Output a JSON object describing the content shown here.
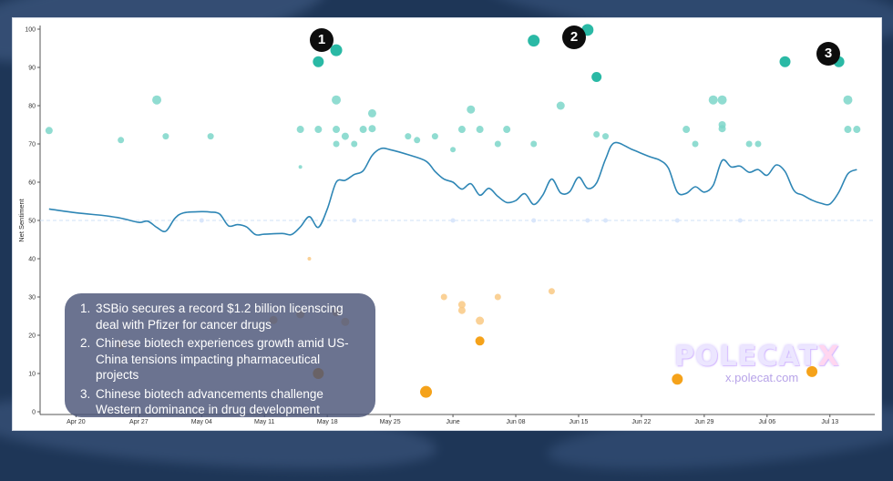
{
  "chart_data": {
    "type": "scatter",
    "ylabel": "Net Sentiment",
    "xlabel": "",
    "ylim": [
      0,
      100
    ],
    "yticks": [
      0,
      10,
      20,
      30,
      40,
      50,
      60,
      70,
      80,
      90,
      100
    ],
    "x_axis_type": "date",
    "xlim": [
      "2024-04-16",
      "2024-07-18"
    ],
    "xticks": [
      {
        "date": "2024-04-20",
        "label": "Apr 20"
      },
      {
        "date": "2024-04-27",
        "label": "Apr 27"
      },
      {
        "date": "2024-05-04",
        "label": "May 04"
      },
      {
        "date": "2024-05-11",
        "label": "May 11"
      },
      {
        "date": "2024-05-18",
        "label": "May 18"
      },
      {
        "date": "2024-05-25",
        "label": "May 25"
      },
      {
        "date": "2024-06-01",
        "label": "June"
      },
      {
        "date": "2024-06-08",
        "label": "Jun 08"
      },
      {
        "date": "2024-06-15",
        "label": "Jun 15"
      },
      {
        "date": "2024-06-22",
        "label": "Jun 22"
      },
      {
        "date": "2024-06-29",
        "label": "Jun 29"
      },
      {
        "date": "2024-07-06",
        "label": "Jul 06"
      },
      {
        "date": "2024-07-13",
        "label": "Jul 13"
      }
    ],
    "grid": false,
    "neutral_line": 50,
    "colors": {
      "line": "#2e86b5",
      "positive": "#2ab9a5",
      "positive_light": "#7dd6c9",
      "negative": "#f5a21a",
      "negative_light": "#f9c984",
      "neutral_dot": "#d9e6fb",
      "neutral_line": "#cfe0f7"
    },
    "series": [
      {
        "kind": "line",
        "points": [
          [
            "2024-04-17",
            53
          ],
          [
            "2024-04-20",
            52
          ],
          [
            "2024-04-23",
            51.3
          ],
          [
            "2024-04-25",
            50.6
          ],
          [
            "2024-04-27",
            49.5
          ],
          [
            "2024-04-28",
            49.8
          ],
          [
            "2024-04-29",
            48.2
          ],
          [
            "2024-04-30",
            47.2
          ],
          [
            "2024-05-01",
            50.5
          ],
          [
            "2024-05-02",
            52
          ],
          [
            "2024-05-04",
            52.3
          ],
          [
            "2024-05-05",
            52.2
          ],
          [
            "2024-05-06",
            51.7
          ],
          [
            "2024-05-07",
            48.6
          ],
          [
            "2024-05-08",
            48.9
          ],
          [
            "2024-05-09",
            48.3
          ],
          [
            "2024-05-10",
            46.3
          ],
          [
            "2024-05-11",
            46.4
          ],
          [
            "2024-05-13",
            46.6
          ],
          [
            "2024-05-14",
            46.3
          ],
          [
            "2024-05-15",
            48.3
          ],
          [
            "2024-05-16",
            51
          ],
          [
            "2024-05-17",
            48.2
          ],
          [
            "2024-05-18",
            53
          ],
          [
            "2024-05-19",
            60
          ],
          [
            "2024-05-20",
            60.5
          ],
          [
            "2024-05-21",
            62
          ],
          [
            "2024-05-22",
            63
          ],
          [
            "2024-05-23",
            67
          ],
          [
            "2024-05-24",
            68.8
          ],
          [
            "2024-05-25",
            68.5
          ],
          [
            "2024-05-27",
            67.2
          ],
          [
            "2024-05-29",
            65.5
          ],
          [
            "2024-05-30",
            62.8
          ],
          [
            "2024-05-31",
            60.8
          ],
          [
            "2024-06-01",
            60
          ],
          [
            "2024-06-02",
            58.2
          ],
          [
            "2024-06-03",
            59.6
          ],
          [
            "2024-06-04",
            56.6
          ],
          [
            "2024-06-05",
            58.4
          ],
          [
            "2024-06-06",
            56.3
          ],
          [
            "2024-06-07",
            54.7
          ],
          [
            "2024-06-08",
            55.2
          ],
          [
            "2024-06-09",
            57
          ],
          [
            "2024-06-10",
            54.2
          ],
          [
            "2024-06-11",
            56.6
          ],
          [
            "2024-06-12",
            60.8
          ],
          [
            "2024-06-13",
            57.2
          ],
          [
            "2024-06-14",
            57.5
          ],
          [
            "2024-06-15",
            61.3
          ],
          [
            "2024-06-16",
            58.4
          ],
          [
            "2024-06-17",
            59.8
          ],
          [
            "2024-06-18",
            66
          ],
          [
            "2024-06-19",
            70.3
          ],
          [
            "2024-06-21",
            68.5
          ],
          [
            "2024-06-23",
            66.6
          ],
          [
            "2024-06-24",
            65.8
          ],
          [
            "2024-06-25",
            63.7
          ],
          [
            "2024-06-26",
            57.4
          ],
          [
            "2024-06-27",
            57.1
          ],
          [
            "2024-06-28",
            58.8
          ],
          [
            "2024-06-29",
            57.4
          ],
          [
            "2024-06-30",
            59.2
          ],
          [
            "2024-07-01",
            65.7
          ],
          [
            "2024-07-02",
            64
          ],
          [
            "2024-07-03",
            64.2
          ],
          [
            "2024-07-04",
            62.6
          ],
          [
            "2024-07-05",
            63.3
          ],
          [
            "2024-07-06",
            61.8
          ],
          [
            "2024-07-07",
            64.5
          ],
          [
            "2024-07-08",
            62.8
          ],
          [
            "2024-07-09",
            57.8
          ],
          [
            "2024-07-10",
            56.6
          ],
          [
            "2024-07-11",
            55.3
          ],
          [
            "2024-07-12",
            54.5
          ],
          [
            "2024-07-13",
            54.3
          ],
          [
            "2024-07-14",
            57.4
          ],
          [
            "2024-07-15",
            62.2
          ],
          [
            "2024-07-16",
            63.3
          ]
        ]
      },
      {
        "kind": "dots",
        "points": [
          {
            "x": "2024-04-17",
            "y": 73.5,
            "size": 4,
            "tone": "positive_light"
          },
          {
            "x": "2024-04-25",
            "y": 71,
            "size": 3.5,
            "tone": "positive_light"
          },
          {
            "x": "2024-04-29",
            "y": 81.5,
            "size": 5,
            "tone": "positive_light"
          },
          {
            "x": "2024-04-30",
            "y": 72,
            "size": 3.5,
            "tone": "positive_light"
          },
          {
            "x": "2024-05-05",
            "y": 72,
            "size": 3.5,
            "tone": "positive_light"
          },
          {
            "x": "2024-05-15",
            "y": 73.8,
            "size": 4,
            "tone": "positive_light"
          },
          {
            "x": "2024-05-15",
            "y": 64,
            "size": 2,
            "tone": "positive_light"
          },
          {
            "x": "2024-05-17",
            "y": 91.5,
            "size": 6,
            "tone": "positive"
          },
          {
            "x": "2024-05-17",
            "y": 73.8,
            "size": 4,
            "tone": "positive_light"
          },
          {
            "x": "2024-05-19",
            "y": 94.5,
            "size": 6.5,
            "tone": "positive"
          },
          {
            "x": "2024-05-19",
            "y": 81.5,
            "size": 5,
            "tone": "positive_light"
          },
          {
            "x": "2024-05-19",
            "y": 73.8,
            "size": 4,
            "tone": "positive_light"
          },
          {
            "x": "2024-05-19",
            "y": 70,
            "size": 3.5,
            "tone": "positive_light"
          },
          {
            "x": "2024-05-20",
            "y": 72,
            "size": 4,
            "tone": "positive_light"
          },
          {
            "x": "2024-05-21",
            "y": 70,
            "size": 3.5,
            "tone": "positive_light"
          },
          {
            "x": "2024-05-22",
            "y": 73.8,
            "size": 4,
            "tone": "positive_light"
          },
          {
            "x": "2024-05-23",
            "y": 78,
            "size": 4.5,
            "tone": "positive_light"
          },
          {
            "x": "2024-05-23",
            "y": 74,
            "size": 4,
            "tone": "positive_light"
          },
          {
            "x": "2024-05-27",
            "y": 72,
            "size": 3.5,
            "tone": "positive_light"
          },
          {
            "x": "2024-05-28",
            "y": 71,
            "size": 3.5,
            "tone": "positive_light"
          },
          {
            "x": "2024-05-30",
            "y": 72,
            "size": 3.5,
            "tone": "positive_light"
          },
          {
            "x": "2024-06-01",
            "y": 68.5,
            "size": 3,
            "tone": "positive_light"
          },
          {
            "x": "2024-06-02",
            "y": 73.8,
            "size": 4,
            "tone": "positive_light"
          },
          {
            "x": "2024-06-03",
            "y": 79,
            "size": 4.5,
            "tone": "positive_light"
          },
          {
            "x": "2024-06-04",
            "y": 73.8,
            "size": 4,
            "tone": "positive_light"
          },
          {
            "x": "2024-06-06",
            "y": 70,
            "size": 3.5,
            "tone": "positive_light"
          },
          {
            "x": "2024-06-07",
            "y": 73.8,
            "size": 4,
            "tone": "positive_light"
          },
          {
            "x": "2024-06-10",
            "y": 97,
            "size": 6.5,
            "tone": "positive"
          },
          {
            "x": "2024-06-10",
            "y": 70,
            "size": 3.5,
            "tone": "positive_light"
          },
          {
            "x": "2024-06-13",
            "y": 80,
            "size": 4.5,
            "tone": "positive_light"
          },
          {
            "x": "2024-06-16",
            "y": 99.8,
            "size": 6.5,
            "tone": "positive"
          },
          {
            "x": "2024-06-17",
            "y": 87.5,
            "size": 5.5,
            "tone": "positive"
          },
          {
            "x": "2024-06-17",
            "y": 72.5,
            "size": 3.5,
            "tone": "positive_light"
          },
          {
            "x": "2024-06-18",
            "y": 72,
            "size": 3.5,
            "tone": "positive_light"
          },
          {
            "x": "2024-06-27",
            "y": 73.8,
            "size": 4,
            "tone": "positive_light"
          },
          {
            "x": "2024-06-28",
            "y": 70,
            "size": 3.5,
            "tone": "positive_light"
          },
          {
            "x": "2024-06-30",
            "y": 81.5,
            "size": 5,
            "tone": "positive_light"
          },
          {
            "x": "2024-07-01",
            "y": 81.5,
            "size": 5,
            "tone": "positive_light"
          },
          {
            "x": "2024-07-01",
            "y": 75,
            "size": 4,
            "tone": "positive_light"
          },
          {
            "x": "2024-07-01",
            "y": 74,
            "size": 4,
            "tone": "positive_light"
          },
          {
            "x": "2024-07-04",
            "y": 70,
            "size": 3.5,
            "tone": "positive_light"
          },
          {
            "x": "2024-07-05",
            "y": 70,
            "size": 3.5,
            "tone": "positive_light"
          },
          {
            "x": "2024-07-08",
            "y": 91.5,
            "size": 6,
            "tone": "positive"
          },
          {
            "x": "2024-07-14",
            "y": 91.5,
            "size": 6,
            "tone": "positive"
          },
          {
            "x": "2024-07-15",
            "y": 81.5,
            "size": 5,
            "tone": "positive_light"
          },
          {
            "x": "2024-07-15",
            "y": 73.8,
            "size": 4,
            "tone": "positive_light"
          },
          {
            "x": "2024-07-16",
            "y": 73.8,
            "size": 4,
            "tone": "positive_light"
          },
          {
            "x": "2024-05-12",
            "y": 24,
            "size": 4.5,
            "tone": "negative_light"
          },
          {
            "x": "2024-05-15",
            "y": 25.5,
            "size": 4.5,
            "tone": "negative_light"
          },
          {
            "x": "2024-05-17",
            "y": 10,
            "size": 6,
            "tone": "negative"
          },
          {
            "x": "2024-05-19",
            "y": 26,
            "size": 4.5,
            "tone": "negative_light"
          },
          {
            "x": "2024-05-20",
            "y": 23.5,
            "size": 4.5,
            "tone": "negative_light"
          },
          {
            "x": "2024-05-16",
            "y": 40,
            "size": 2,
            "tone": "negative_light"
          },
          {
            "x": "2024-04-25",
            "y": 17.5,
            "size": 4.5,
            "tone": "negative_light"
          },
          {
            "x": "2024-05-29",
            "y": 5.2,
            "size": 6.5,
            "tone": "negative"
          },
          {
            "x": "2024-05-31",
            "y": 30,
            "size": 3.5,
            "tone": "negative_light"
          },
          {
            "x": "2024-06-02",
            "y": 28,
            "size": 4,
            "tone": "negative_light"
          },
          {
            "x": "2024-06-02",
            "y": 26.5,
            "size": 4,
            "tone": "negative_light"
          },
          {
            "x": "2024-06-04",
            "y": 23.8,
            "size": 4.5,
            "tone": "negative_light"
          },
          {
            "x": "2024-06-04",
            "y": 18.5,
            "size": 5,
            "tone": "negative"
          },
          {
            "x": "2024-06-06",
            "y": 30,
            "size": 3.5,
            "tone": "negative_light"
          },
          {
            "x": "2024-06-12",
            "y": 31.5,
            "size": 3.5,
            "tone": "negative_light"
          },
          {
            "x": "2024-06-26",
            "y": 8.5,
            "size": 6,
            "tone": "negative"
          },
          {
            "x": "2024-07-11",
            "y": 10.5,
            "size": 6,
            "tone": "negative"
          },
          {
            "x": "2024-05-04",
            "y": 50,
            "size": 2.5,
            "tone": "neutral_dot"
          },
          {
            "x": "2024-05-21",
            "y": 50,
            "size": 2.5,
            "tone": "neutral_dot"
          },
          {
            "x": "2024-06-01",
            "y": 50,
            "size": 2.5,
            "tone": "neutral_dot"
          },
          {
            "x": "2024-06-10",
            "y": 50,
            "size": 2.5,
            "tone": "neutral_dot"
          },
          {
            "x": "2024-06-16",
            "y": 50,
            "size": 2.5,
            "tone": "neutral_dot"
          },
          {
            "x": "2024-06-18",
            "y": 50,
            "size": 2.5,
            "tone": "neutral_dot"
          },
          {
            "x": "2024-06-26",
            "y": 50,
            "size": 2.5,
            "tone": "neutral_dot"
          },
          {
            "x": "2024-07-03",
            "y": 50,
            "size": 2.5,
            "tone": "neutral_dot"
          }
        ]
      }
    ],
    "annotations": [
      {
        "label": "1",
        "text": "3SBio secures a record $1.2 billion licenscing deal with Pfizer for cancer drugs"
      },
      {
        "label": "2",
        "text": "Chinese biotech experiences growth amid US-China tensions impacting pharmaceutical projects"
      },
      {
        "label": "3",
        "text": " Chinese biotech advancements challenge Western dominance in drug development"
      }
    ]
  },
  "watermark": {
    "brand": "POLECAT",
    "brand_x": "X",
    "url": "x.polecat.com"
  }
}
